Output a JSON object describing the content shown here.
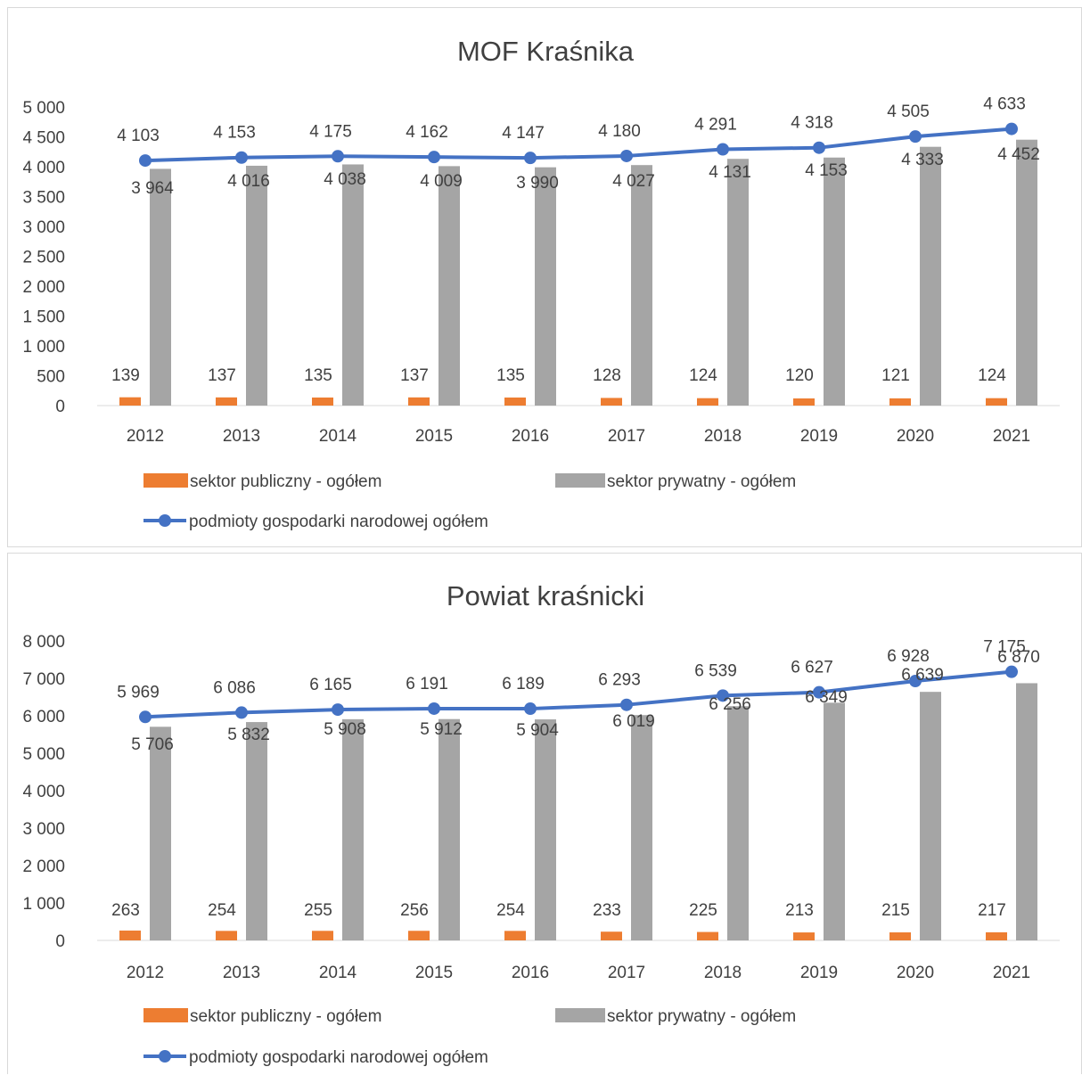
{
  "chart_data": [
    {
      "type": "bar",
      "title": "MOF Kraśnika",
      "categories": [
        "2012",
        "2013",
        "2014",
        "2015",
        "2016",
        "2017",
        "2018",
        "2019",
        "2020",
        "2021"
      ],
      "ylim": [
        0,
        5000
      ],
      "yticks": [
        "0",
        "500",
        "1 000",
        "1 500",
        "2 000",
        "2 500",
        "3 000",
        "3 500",
        "4 000",
        "4 500",
        "5 000"
      ],
      "grid": false,
      "legend_position": "bottom",
      "series": [
        {
          "name": "sektor publiczny - ogółem",
          "type": "bar",
          "color": "#ED7D31",
          "values": [
            139,
            137,
            135,
            137,
            135,
            128,
            124,
            120,
            121,
            124
          ],
          "labels": [
            "139",
            "137",
            "135",
            "137",
            "135",
            "128",
            "124",
            "120",
            "121",
            "124"
          ]
        },
        {
          "name": "sektor prywatny - ogółem",
          "type": "bar",
          "color": "#A5A5A5",
          "values": [
            3964,
            4016,
            4038,
            4009,
            3990,
            4027,
            4131,
            4153,
            4333,
            4452
          ],
          "labels": [
            "3 964",
            "4 016",
            "4 038",
            "4 009",
            "3 990",
            "4 027",
            "4 131",
            "4 153",
            "4 333",
            "4 452"
          ]
        },
        {
          "name": "podmioty gospodarki narodowej ogółem",
          "type": "line",
          "color": "#4472C4",
          "values": [
            4103,
            4153,
            4175,
            4162,
            4147,
            4180,
            4291,
            4318,
            4505,
            4633
          ],
          "labels": [
            "4 103",
            "4 153",
            "4 175",
            "4 162",
            "4 147",
            "4 180",
            "4 291",
            "4 318",
            "4 505",
            "4 633"
          ]
        }
      ]
    },
    {
      "type": "bar",
      "title": "Powiat kraśnicki",
      "categories": [
        "2012",
        "2013",
        "2014",
        "2015",
        "2016",
        "2017",
        "2018",
        "2019",
        "2020",
        "2021"
      ],
      "ylim": [
        0,
        8000
      ],
      "yticks": [
        "0",
        "1 000",
        "2 000",
        "3 000",
        "4 000",
        "5 000",
        "6 000",
        "7 000",
        "8 000"
      ],
      "grid": false,
      "legend_position": "bottom",
      "series": [
        {
          "name": "sektor publiczny - ogółem",
          "type": "bar",
          "color": "#ED7D31",
          "values": [
            263,
            254,
            255,
            256,
            254,
            233,
            225,
            213,
            215,
            217
          ],
          "labels": [
            "263",
            "254",
            "255",
            "256",
            "254",
            "233",
            "225",
            "213",
            "215",
            "217"
          ]
        },
        {
          "name": "sektor prywatny - ogółem",
          "type": "bar",
          "color": "#A5A5A5",
          "values": [
            5706,
            5832,
            5908,
            5912,
            5904,
            6019,
            6256,
            6349,
            6639,
            6870
          ],
          "labels": [
            "5 706",
            "5 832",
            "5 908",
            "5 912",
            "5 904",
            "6 019",
            "6 256",
            "6 349",
            "6 639",
            "6 870"
          ]
        },
        {
          "name": "podmioty gospodarki narodowej ogółem",
          "type": "line",
          "color": "#4472C4",
          "values": [
            5969,
            6086,
            6165,
            6191,
            6189,
            6293,
            6539,
            6627,
            6928,
            7175
          ],
          "labels": [
            "5 969",
            "6 086",
            "6 165",
            "6 191",
            "6 189",
            "6 293",
            "6 539",
            "6 627",
            "6 928",
            "7 175"
          ]
        }
      ]
    }
  ]
}
